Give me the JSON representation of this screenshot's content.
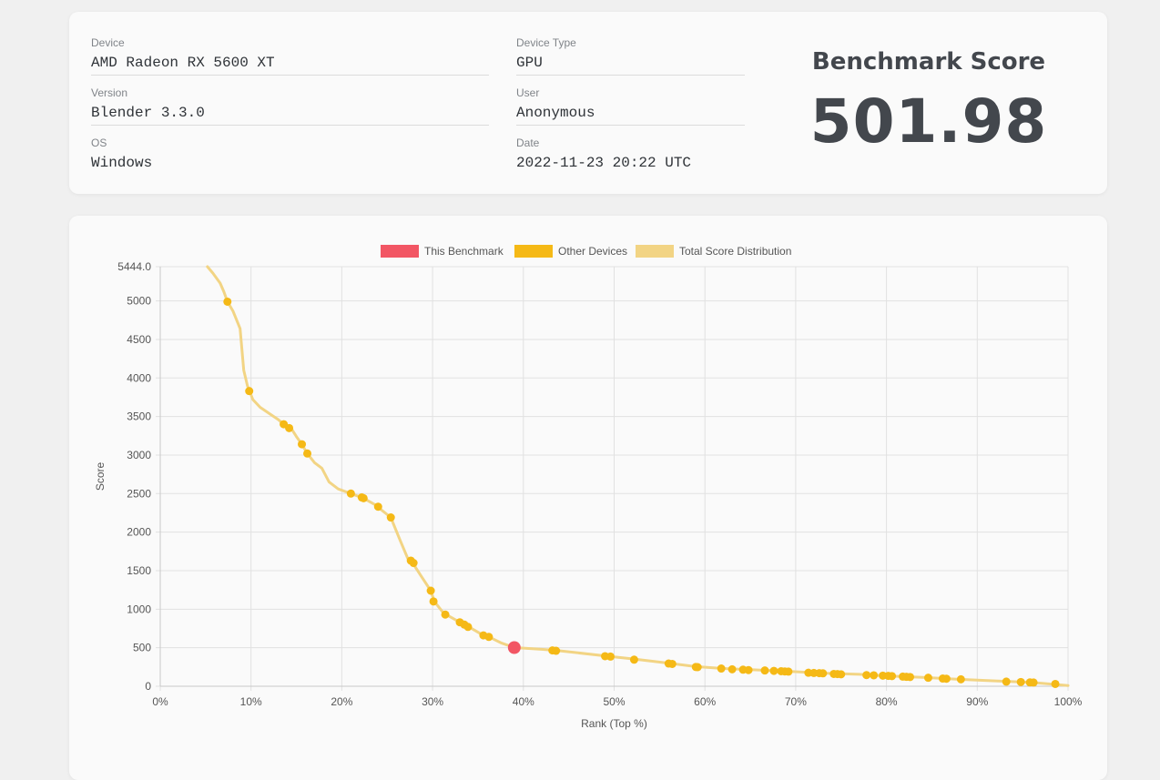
{
  "info": {
    "device_label": "Device",
    "device_value": "AMD Radeon RX 5600 XT",
    "version_label": "Version",
    "version_value": "Blender 3.3.0",
    "os_label": "OS",
    "os_value": "Windows",
    "device_type_label": "Device Type",
    "device_type_value": "GPU",
    "user_label": "User",
    "user_value": "Anonymous",
    "date_label": "Date",
    "date_value": "2022-11-23 20:22 UTC"
  },
  "score": {
    "title": "Benchmark Score",
    "value": "501.98"
  },
  "colors": {
    "this_benchmark": "#f25664",
    "other_devices": "#f5b916",
    "distribution": "#f2d484",
    "grid": "#e1e1e1"
  },
  "chart_data": {
    "type": "line",
    "xlabel": "Rank (Top %)",
    "ylabel": "Score",
    "xlim": [
      0,
      100
    ],
    "ylim": [
      0,
      5444.0
    ],
    "x_ticks": [
      "0%",
      "10%",
      "20%",
      "30%",
      "40%",
      "50%",
      "60%",
      "70%",
      "80%",
      "90%",
      "100%"
    ],
    "y_ticks": [
      "0",
      "500",
      "1000",
      "1500",
      "2000",
      "2500",
      "3000",
      "3500",
      "4000",
      "4500",
      "5000",
      "5444.0"
    ],
    "y_tick_values": [
      0,
      500,
      1000,
      1500,
      2000,
      2500,
      3000,
      3500,
      4000,
      4500,
      5000,
      5444
    ],
    "legend": [
      "This Benchmark",
      "Other Devices",
      "Total Score Distribution"
    ],
    "legend_position": "top",
    "grid": true,
    "series": [
      {
        "name": "Total Score Distribution",
        "type": "line",
        "points": [
          [
            5.2,
            5444
          ],
          [
            5.8,
            5360
          ],
          [
            6.6,
            5230
          ],
          [
            7.0,
            5120
          ],
          [
            7.4,
            4990
          ],
          [
            8.0,
            4870
          ],
          [
            8.8,
            4640
          ],
          [
            9.2,
            4100
          ],
          [
            9.6,
            3900
          ],
          [
            10.2,
            3720
          ],
          [
            11.0,
            3620
          ],
          [
            12.0,
            3540
          ],
          [
            13.0,
            3460
          ],
          [
            13.6,
            3400
          ],
          [
            14.4,
            3350
          ],
          [
            15.0,
            3240
          ],
          [
            15.6,
            3140
          ],
          [
            16.2,
            3020
          ],
          [
            17.0,
            2900
          ],
          [
            17.8,
            2830
          ],
          [
            18.6,
            2650
          ],
          [
            19.6,
            2560
          ],
          [
            21.0,
            2500
          ],
          [
            22.4,
            2440
          ],
          [
            23.6,
            2360
          ],
          [
            25.4,
            2190
          ],
          [
            26.4,
            1900
          ],
          [
            27.4,
            1620
          ],
          [
            27.8,
            1600
          ],
          [
            28.8,
            1420
          ],
          [
            29.8,
            1240
          ],
          [
            30.2,
            1100
          ],
          [
            31.2,
            950
          ],
          [
            33.0,
            830
          ],
          [
            34.0,
            770
          ],
          [
            35.6,
            660
          ],
          [
            36.4,
            630
          ],
          [
            37.6,
            560
          ],
          [
            39.0,
            502
          ],
          [
            42.0,
            480
          ],
          [
            43.6,
            465
          ],
          [
            49.0,
            395
          ],
          [
            50.0,
            380
          ],
          [
            52.0,
            355
          ],
          [
            56.0,
            300
          ],
          [
            59.0,
            255
          ],
          [
            62.0,
            230
          ],
          [
            65.0,
            215
          ],
          [
            69.0,
            195
          ],
          [
            73.0,
            170
          ],
          [
            77.0,
            155
          ],
          [
            80.0,
            135
          ],
          [
            84.0,
            115
          ],
          [
            88.0,
            90
          ],
          [
            92.0,
            70
          ],
          [
            96.0,
            50
          ],
          [
            100.0,
            10
          ]
        ]
      },
      {
        "name": "Other Devices",
        "type": "scatter",
        "points": [
          [
            7.4,
            4990
          ],
          [
            9.8,
            3830
          ],
          [
            13.6,
            3400
          ],
          [
            14.2,
            3350
          ],
          [
            15.6,
            3140
          ],
          [
            16.2,
            3020
          ],
          [
            21.0,
            2500
          ],
          [
            22.2,
            2450
          ],
          [
            22.4,
            2440
          ],
          [
            24.0,
            2330
          ],
          [
            25.4,
            2190
          ],
          [
            27.6,
            1630
          ],
          [
            27.9,
            1600
          ],
          [
            29.8,
            1240
          ],
          [
            30.1,
            1100
          ],
          [
            31.4,
            930
          ],
          [
            33.0,
            830
          ],
          [
            33.5,
            800
          ],
          [
            33.9,
            770
          ],
          [
            35.6,
            660
          ],
          [
            36.2,
            640
          ],
          [
            43.2,
            465
          ],
          [
            43.6,
            460
          ],
          [
            49.0,
            390
          ],
          [
            49.6,
            385
          ],
          [
            52.2,
            345
          ],
          [
            56.0,
            295
          ],
          [
            56.4,
            290
          ],
          [
            59.0,
            250
          ],
          [
            59.2,
            248
          ],
          [
            61.8,
            230
          ],
          [
            63.0,
            220
          ],
          [
            64.2,
            215
          ],
          [
            64.8,
            210
          ],
          [
            66.6,
            205
          ],
          [
            67.6,
            200
          ],
          [
            68.4,
            195
          ],
          [
            68.8,
            192
          ],
          [
            69.2,
            190
          ],
          [
            71.4,
            175
          ],
          [
            72.0,
            172
          ],
          [
            72.6,
            170
          ],
          [
            73.0,
            168
          ],
          [
            74.2,
            160
          ],
          [
            74.6,
            158
          ],
          [
            75.0,
            155
          ],
          [
            77.8,
            145
          ],
          [
            78.6,
            142
          ],
          [
            79.6,
            138
          ],
          [
            80.2,
            135
          ],
          [
            80.6,
            132
          ],
          [
            81.8,
            125
          ],
          [
            82.2,
            122
          ],
          [
            82.6,
            120
          ],
          [
            84.6,
            110
          ],
          [
            86.2,
            100
          ],
          [
            86.6,
            98
          ],
          [
            88.2,
            90
          ],
          [
            93.2,
            60
          ],
          [
            94.8,
            55
          ],
          [
            95.8,
            50
          ],
          [
            96.2,
            48
          ],
          [
            98.6,
            30
          ]
        ]
      },
      {
        "name": "This Benchmark",
        "type": "scatter",
        "points": [
          [
            39.0,
            501.98
          ]
        ]
      }
    ]
  }
}
